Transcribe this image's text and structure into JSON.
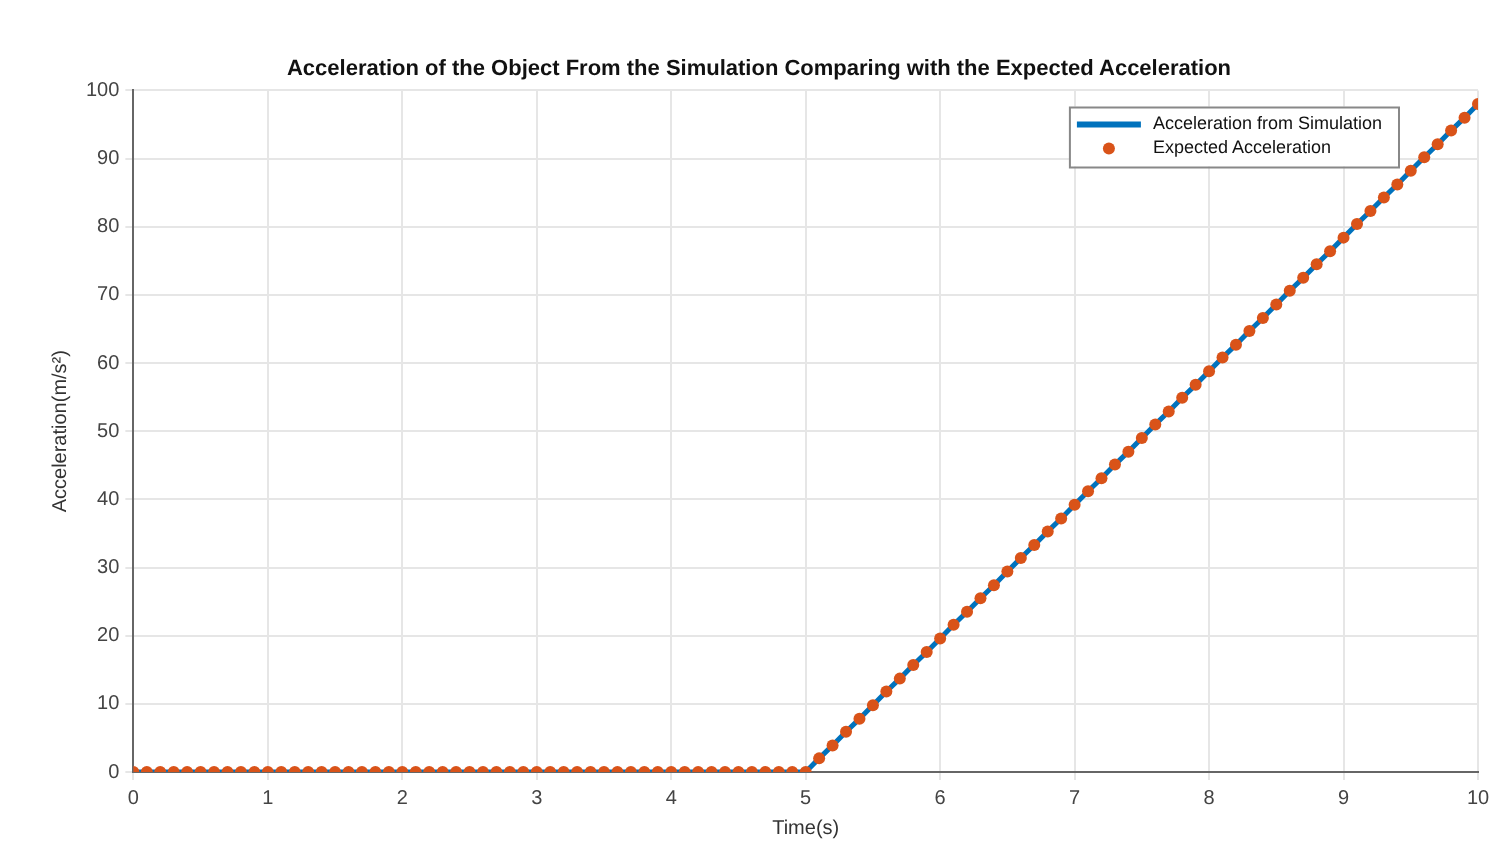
{
  "chart_data": {
    "type": "line",
    "title": "Acceleration of the Object From the Simulation Comparing with the Expected Acceleration",
    "xlabel": "Time(s)",
    "ylabel": "Acceleration(m/s²)",
    "x": [
      0,
      0.1,
      0.2,
      0.3,
      0.4,
      0.5,
      0.6,
      0.7,
      0.8,
      0.9,
      1,
      1.1,
      1.2,
      1.3,
      1.4,
      1.5,
      1.6,
      1.7,
      1.8,
      1.9,
      2,
      2.1,
      2.2,
      2.3,
      2.4,
      2.5,
      2.6,
      2.7,
      2.8,
      2.9,
      3,
      3.1,
      3.2,
      3.3,
      3.4,
      3.5,
      3.6,
      3.7,
      3.8,
      3.9,
      4,
      4.1,
      4.2,
      4.3,
      4.4,
      4.5,
      4.6,
      4.7,
      4.8,
      4.9,
      5,
      5.1,
      5.2,
      5.3,
      5.4,
      5.5,
      5.6,
      5.7,
      5.8,
      5.9,
      6,
      6.1,
      6.2,
      6.3,
      6.4,
      6.5,
      6.6,
      6.7,
      6.8,
      6.9,
      7,
      7.1,
      7.2,
      7.3,
      7.4,
      7.5,
      7.6,
      7.7,
      7.8,
      7.9,
      8,
      8.1,
      8.2,
      8.3,
      8.4,
      8.5,
      8.6,
      8.7,
      8.8,
      8.9,
      9,
      9.1,
      9.2,
      9.3,
      9.4,
      9.5,
      9.6,
      9.7,
      9.8,
      9.9,
      10
    ],
    "series": [
      {
        "name": "Acceleration from Simulation",
        "type": "line",
        "color": "#0072bd",
        "marker": "none",
        "values": [
          0,
          0,
          0,
          0,
          0,
          0,
          0,
          0,
          0,
          0,
          0,
          0,
          0,
          0,
          0,
          0,
          0,
          0,
          0,
          0,
          0,
          0,
          0,
          0,
          0,
          0,
          0,
          0,
          0,
          0,
          0,
          0,
          0,
          0,
          0,
          0,
          0,
          0,
          0,
          0,
          0,
          0,
          0,
          0,
          0,
          0,
          0,
          0,
          0,
          0,
          0,
          2.0,
          3.9,
          5.9,
          7.8,
          9.8,
          11.8,
          13.7,
          15.7,
          17.6,
          19.6,
          21.6,
          23.5,
          25.5,
          27.4,
          29.4,
          31.4,
          33.3,
          35.3,
          37.2,
          39.2,
          41.2,
          43.1,
          45.1,
          47.0,
          49.0,
          51.0,
          52.9,
          54.9,
          56.8,
          58.8,
          60.8,
          62.7,
          64.7,
          66.6,
          68.6,
          70.6,
          72.5,
          74.5,
          76.4,
          78.4,
          80.4,
          82.3,
          84.3,
          86.2,
          88.2,
          90.2,
          92.1,
          94.1,
          96.0,
          98.0
        ]
      },
      {
        "name": "Expected Acceleration",
        "type": "scatter",
        "color": "#d95319",
        "marker": "circle",
        "values": [
          0,
          0,
          0,
          0,
          0,
          0,
          0,
          0,
          0,
          0,
          0,
          0,
          0,
          0,
          0,
          0,
          0,
          0,
          0,
          0,
          0,
          0,
          0,
          0,
          0,
          0,
          0,
          0,
          0,
          0,
          0,
          0,
          0,
          0,
          0,
          0,
          0,
          0,
          0,
          0,
          0,
          0,
          0,
          0,
          0,
          0,
          0,
          0,
          0,
          0,
          0,
          2.0,
          3.9,
          5.9,
          7.8,
          9.8,
          11.8,
          13.7,
          15.7,
          17.6,
          19.6,
          21.6,
          23.5,
          25.5,
          27.4,
          29.4,
          31.4,
          33.3,
          35.3,
          37.2,
          39.2,
          41.2,
          43.1,
          45.1,
          47.0,
          49.0,
          51.0,
          52.9,
          54.9,
          56.8,
          58.8,
          60.8,
          62.7,
          64.7,
          66.6,
          68.6,
          70.6,
          72.5,
          74.5,
          76.4,
          78.4,
          80.4,
          82.3,
          84.3,
          86.2,
          88.2,
          90.2,
          92.1,
          94.1,
          96.0,
          98.0
        ]
      }
    ],
    "xlim": [
      0,
      10
    ],
    "xticks": [
      0,
      1,
      2,
      3,
      4,
      5,
      6,
      7,
      8,
      9,
      10
    ],
    "ylim": [
      0,
      100
    ],
    "yticks": [
      0,
      10,
      20,
      30,
      40,
      50,
      60,
      70,
      80,
      90,
      100
    ],
    "grid": true,
    "legend": "top right"
  }
}
